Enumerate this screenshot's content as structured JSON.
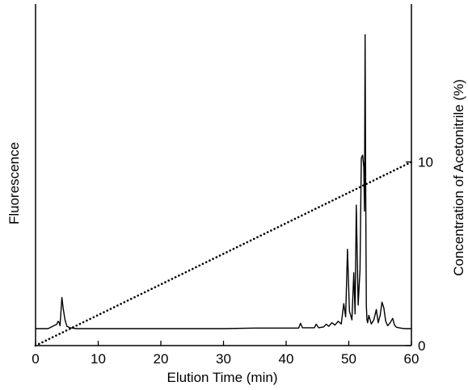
{
  "chart_data": {
    "type": "line",
    "xlabel": "Elution Time (min)",
    "ylabel_left": "Fluorescence",
    "ylabel_right": "Concentration of Acetonitrile (%)",
    "xlim": [
      0,
      60
    ],
    "x_ticks": [
      0,
      10,
      20,
      30,
      40,
      50,
      60
    ],
    "y_right_lim": [
      0,
      18.6
    ],
    "y_right_ticks": [
      0,
      10
    ],
    "y_left_lim": [
      0,
      100
    ],
    "grid": false,
    "legend": "none",
    "series": [
      {
        "style": "solid",
        "axis": "left",
        "x": [
          0,
          2.0,
          3.4,
          3.6,
          3.8,
          3.9,
          4.0,
          4.2,
          4.4,
          4.7,
          5.0,
          5.5,
          6.5,
          10,
          20,
          30,
          35,
          42.0,
          42.3,
          42.6,
          43.5,
          44.5,
          44.8,
          45.2,
          46,
          46.4,
          46.8,
          47.3,
          47.8,
          48.3,
          48.8,
          49.2,
          49.5,
          49.8,
          50.1,
          50.5,
          50.8,
          51.0,
          51.2,
          51.5,
          51.8,
          52.0,
          52.2,
          52.4,
          52.5,
          52.6,
          52.7,
          52.8,
          52.9,
          53.0,
          53.2,
          53.6,
          54.0,
          54.4,
          54.7,
          55.0,
          55.3,
          55.6,
          55.9,
          56.2,
          56.6,
          57.0,
          57.3,
          57.6,
          58.0,
          58.5,
          59,
          60
        ],
        "y": [
          0,
          0,
          1.5,
          2.5,
          2.0,
          1.0,
          4.0,
          10.6,
          7.0,
          3.0,
          0.8,
          0.3,
          0,
          0,
          0,
          0,
          0.2,
          0.2,
          1.8,
          0.3,
          0.3,
          0.3,
          1.5,
          0.3,
          0.6,
          1.5,
          0.8,
          2.0,
          1.2,
          2.5,
          1.6,
          8.5,
          4.0,
          27.0,
          6.0,
          3.0,
          19.0,
          5.0,
          42.0,
          8.0,
          20.0,
          58.0,
          59.0,
          55.0,
          40.0,
          100.0,
          50.0,
          8.0,
          3.0,
          2.0,
          4.5,
          1.6,
          3.0,
          6.5,
          2.0,
          4.5,
          9.0,
          7.0,
          2.5,
          1.0,
          2.0,
          3.5,
          1.2,
          0.5,
          0.3,
          0.1,
          0,
          0
        ]
      },
      {
        "style": "dotted",
        "axis": "right",
        "x": [
          0,
          60
        ],
        "y": [
          0,
          10
        ]
      }
    ]
  }
}
